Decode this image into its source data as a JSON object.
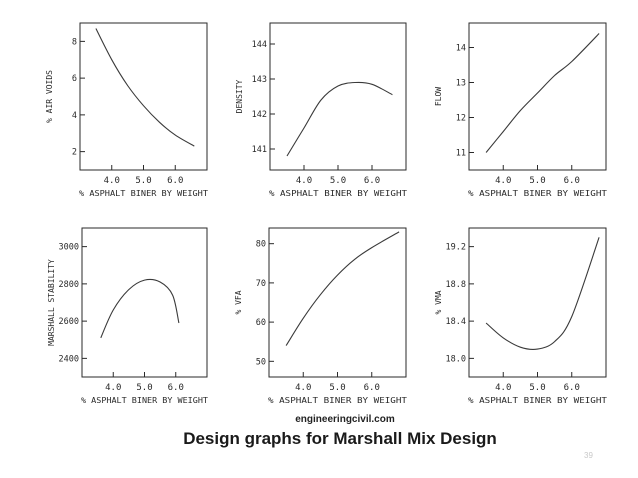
{
  "source_label": "engineeringcivil.com",
  "caption": "Design graphs for Marshall Mix Design",
  "page_number": "39",
  "chart_data": [
    {
      "type": "line",
      "xlabel": "% ASPHALT BINER BY WEIGHT",
      "ylabel": "% AIR VOIDS",
      "xlim": [
        3.0,
        7.0
      ],
      "ylim": [
        1.0,
        9.0
      ],
      "xticks": [
        4.0,
        5.0,
        6.0
      ],
      "xtick_labels": [
        "4.0",
        "5.0",
        "6.0"
      ],
      "yticks": [
        2,
        4,
        6,
        8
      ],
      "ytick_labels": [
        "2",
        "4",
        "6",
        "8"
      ],
      "x": [
        3.5,
        4.0,
        4.5,
        5.0,
        5.5,
        6.0,
        6.6
      ],
      "y": [
        8.7,
        7.0,
        5.6,
        4.5,
        3.6,
        2.9,
        2.3
      ]
    },
    {
      "type": "line",
      "xlabel": "% ASPHALT BINER BY WEIGHT",
      "ylabel": "DENSITY",
      "xlim": [
        3.0,
        7.0
      ],
      "ylim": [
        140.4,
        144.6
      ],
      "xticks": [
        4.0,
        5.0,
        6.0
      ],
      "xtick_labels": [
        "4.0",
        "5.0",
        "6.0"
      ],
      "yticks": [
        141,
        142,
        143,
        144
      ],
      "ytick_labels": [
        "141",
        "142",
        "143",
        "144"
      ],
      "x": [
        3.5,
        4.0,
        4.5,
        5.0,
        5.5,
        6.0,
        6.6
      ],
      "y": [
        140.8,
        141.6,
        142.4,
        142.8,
        142.9,
        142.85,
        142.55
      ]
    },
    {
      "type": "line",
      "xlabel": "% ASPHALT BINER BY WEIGHT",
      "ylabel": "FLOW",
      "xlim": [
        3.0,
        7.0
      ],
      "ylim": [
        10.5,
        14.7
      ],
      "xticks": [
        4.0,
        5.0,
        6.0
      ],
      "xtick_labels": [
        "4.0",
        "5.0",
        "6.0"
      ],
      "yticks": [
        11,
        12,
        13,
        14
      ],
      "ytick_labels": [
        "11",
        "12",
        "13",
        "14"
      ],
      "x": [
        3.5,
        4.0,
        4.5,
        5.0,
        5.5,
        6.0,
        6.8
      ],
      "y": [
        11.0,
        11.6,
        12.2,
        12.7,
        13.2,
        13.6,
        14.4
      ]
    },
    {
      "type": "line",
      "xlabel": "% ASPHALT BINER BY WEIGHT",
      "ylabel": "MARSHALL STABILITY",
      "xlim": [
        3.0,
        7.0
      ],
      "ylim": [
        2300,
        3100
      ],
      "xticks": [
        4.0,
        5.0,
        6.0
      ],
      "xtick_labels": [
        "4.0",
        "5.0",
        "6.0"
      ],
      "yticks": [
        2400,
        2600,
        2800,
        3000
      ],
      "ytick_labels": [
        "2400",
        "2600",
        "2800",
        "3000"
      ],
      "x": [
        3.6,
        4.0,
        4.5,
        5.0,
        5.5,
        5.9,
        6.1
      ],
      "y": [
        2510,
        2660,
        2770,
        2820,
        2810,
        2740,
        2590
      ]
    },
    {
      "type": "line",
      "xlabel": "% ASPHALT BINER BY WEIGHT",
      "ylabel": "% VFA",
      "xlim": [
        3.0,
        7.0
      ],
      "ylim": [
        46,
        84
      ],
      "xticks": [
        4.0,
        5.0,
        6.0
      ],
      "xtick_labels": [
        "4.0",
        "5.0",
        "6.0"
      ],
      "yticks": [
        50,
        60,
        70,
        80
      ],
      "ytick_labels": [
        "50",
        "60",
        "70",
        "80"
      ],
      "x": [
        3.5,
        4.0,
        4.5,
        5.0,
        5.5,
        6.0,
        6.8
      ],
      "y": [
        54,
        61,
        67,
        72,
        76,
        79,
        83
      ]
    },
    {
      "type": "line",
      "xlabel": "% ASPHALT BINER BY WEIGHT",
      "ylabel": "% VMA",
      "xlim": [
        3.0,
        7.0
      ],
      "ylim": [
        17.8,
        19.4
      ],
      "xticks": [
        4.0,
        5.0,
        6.0
      ],
      "xtick_labels": [
        "4.0",
        "5.0",
        "6.0"
      ],
      "yticks": [
        18.0,
        18.4,
        18.8,
        19.2
      ],
      "ytick_labels": [
        "18.0",
        "18.4",
        "18.8",
        "19.2"
      ],
      "x": [
        3.5,
        4.0,
        4.5,
        5.0,
        5.5,
        6.0,
        6.8
      ],
      "y": [
        18.38,
        18.22,
        18.12,
        18.1,
        18.18,
        18.45,
        19.3
      ]
    }
  ]
}
